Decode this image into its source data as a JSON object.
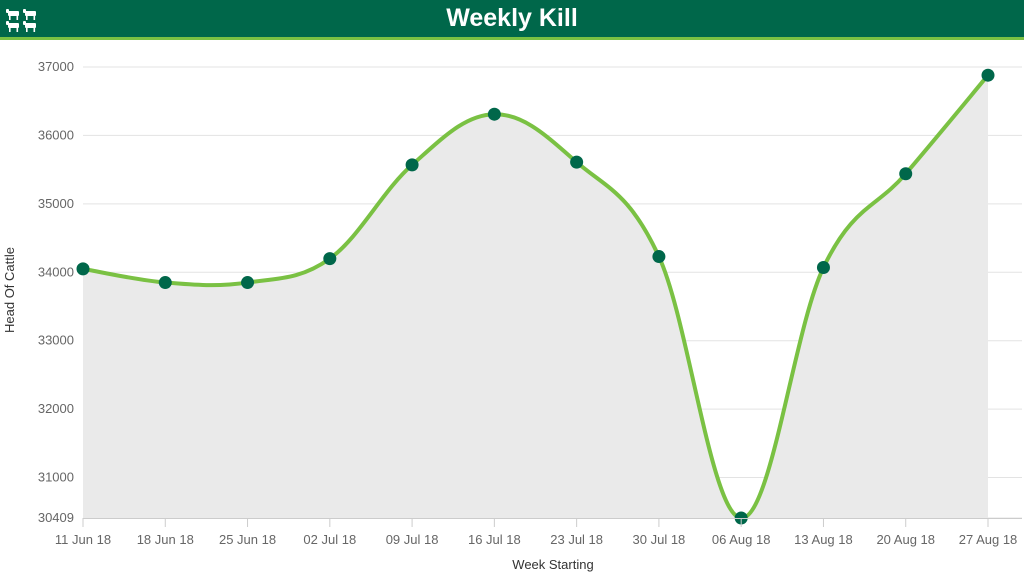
{
  "header": {
    "title": "Weekly Kill",
    "icon": "cattle-icon",
    "background_color": "#00674a",
    "accent_color": "#7ac143"
  },
  "chart_data": {
    "type": "area",
    "smooth": true,
    "categories": [
      "11 Jun 18",
      "18 Jun 18",
      "25 Jun 18",
      "02 Jul 18",
      "09 Jul 18",
      "16 Jul 18",
      "23 Jul 18",
      "30 Jul 18",
      "06 Aug 18",
      "13 Aug 18",
      "20 Aug 18",
      "27 Aug 18"
    ],
    "values": [
      34050,
      33850,
      33850,
      34200,
      35570,
      36310,
      35610,
      34230,
      30409,
      34070,
      35440,
      36880
    ],
    "xlabel": "Week Starting",
    "ylabel": "Head Of Cattle",
    "ylim": [
      30409,
      37000
    ],
    "yticks": [
      30409,
      31000,
      32000,
      33000,
      34000,
      35000,
      36000,
      37000
    ],
    "grid": true,
    "legend": "none",
    "line_color": "#7ac143",
    "marker_color": "#00674a",
    "fill_color": "#eaeaea"
  }
}
